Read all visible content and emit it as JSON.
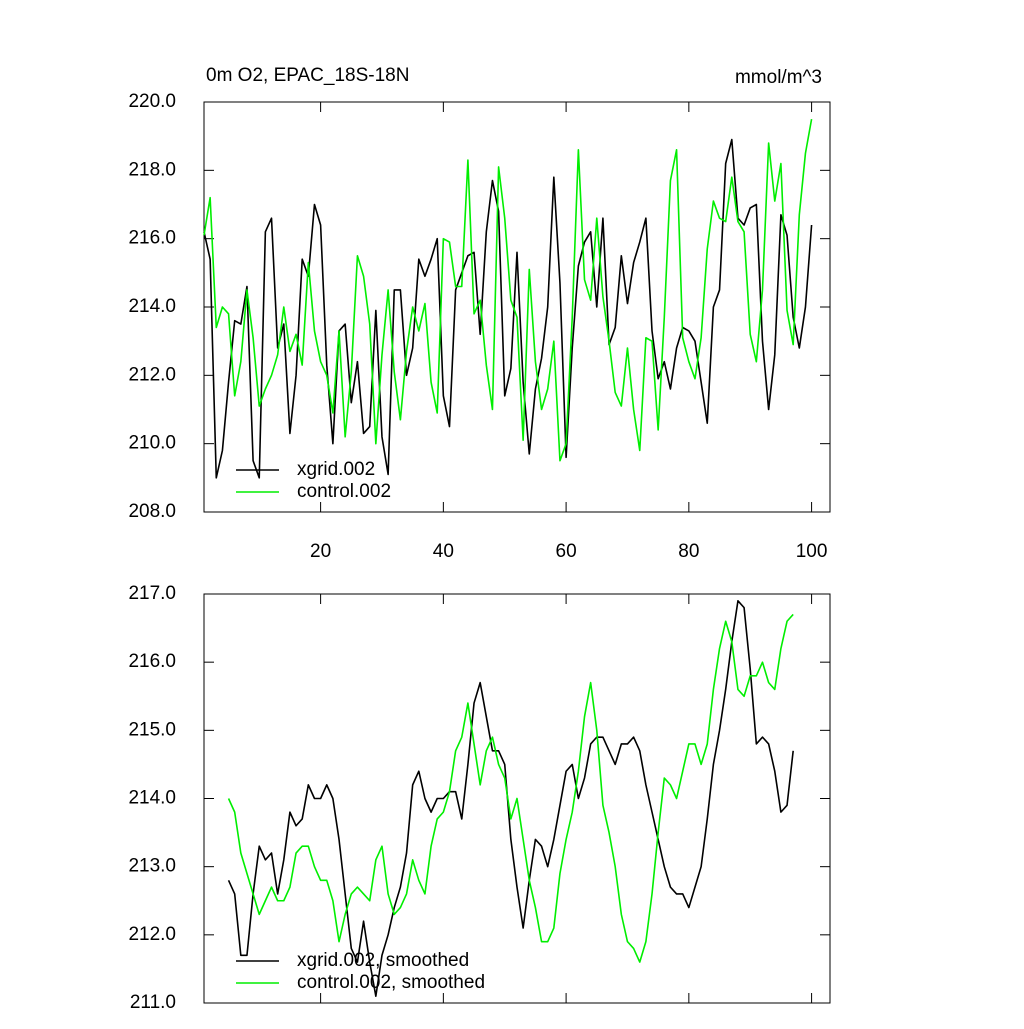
{
  "chart_data": [
    {
      "type": "line",
      "title": "0m O2, EPAC_18S-18N",
      "units": "mmol/m^3",
      "legend": "lower left",
      "x": [
        1,
        2,
        3,
        4,
        5,
        6,
        7,
        8,
        9,
        10,
        11,
        12,
        13,
        14,
        15,
        16,
        17,
        18,
        19,
        20,
        21,
        22,
        23,
        24,
        25,
        26,
        27,
        28,
        29,
        30,
        31,
        32,
        33,
        34,
        35,
        36,
        37,
        38,
        39,
        40,
        41,
        42,
        43,
        44,
        45,
        46,
        47,
        48,
        49,
        50,
        51,
        52,
        53,
        54,
        55,
        56,
        57,
        58,
        59,
        60,
        61,
        62,
        63,
        64,
        65,
        66,
        67,
        68,
        69,
        70,
        71,
        72,
        73,
        74,
        75,
        76,
        77,
        78,
        79,
        80,
        81,
        82,
        83,
        84,
        85,
        86,
        87,
        88,
        89,
        90,
        91,
        92,
        93,
        94,
        95,
        96,
        97,
        98,
        99,
        100
      ],
      "xlim": [
        1,
        103
      ],
      "xticks": [
        20,
        40,
        60,
        80,
        100
      ],
      "ylim": [
        208,
        220
      ],
      "yticks": [
        {
          "value": 208,
          "label": "208.0"
        },
        {
          "value": 210,
          "label": "210.0"
        },
        {
          "value": 212,
          "label": "212.0"
        },
        {
          "value": 214,
          "label": "214.0"
        },
        {
          "value": 216,
          "label": "216.0"
        },
        {
          "value": 218,
          "label": "218.0"
        },
        {
          "value": 220,
          "label": "220.0"
        }
      ],
      "series": [
        {
          "name": "xgrid.002",
          "color": "#000000",
          "values": [
            216.2,
            215.4,
            209.0,
            209.8,
            211.8,
            213.6,
            213.5,
            214.6,
            209.5,
            209.0,
            216.2,
            216.6,
            212.8,
            213.5,
            210.3,
            212.0,
            215.4,
            214.9,
            217.0,
            216.4,
            212.3,
            210.0,
            213.3,
            213.5,
            211.2,
            212.4,
            210.3,
            210.5,
            213.9,
            210.2,
            209.1,
            214.5,
            214.5,
            212.0,
            212.8,
            215.4,
            214.9,
            215.4,
            216.0,
            211.4,
            210.5,
            214.5,
            215.0,
            215.5,
            215.6,
            213.2,
            216.2,
            217.7,
            216.8,
            211.4,
            212.2,
            215.6,
            211.8,
            209.7,
            211.6,
            212.5,
            214.0,
            217.8,
            214.7,
            209.6,
            212.8,
            215.2,
            215.9,
            216.2,
            214.0,
            216.6,
            212.9,
            213.4,
            215.5,
            214.1,
            215.3,
            215.9,
            216.6,
            213.3,
            211.9,
            212.4,
            211.6,
            212.8,
            213.4,
            213.3,
            213.0,
            211.8,
            210.6,
            214.0,
            214.5,
            218.2,
            218.9,
            216.6,
            216.4,
            216.9,
            217.0,
            213.0,
            211.0,
            212.6,
            216.7,
            216.1,
            213.7,
            212.8,
            214.0,
            216.4
          ]
        },
        {
          "name": "control.002",
          "color": "#00ee00",
          "values": [
            216.1,
            217.2,
            213.4,
            214.0,
            213.8,
            211.4,
            212.4,
            214.5,
            213.1,
            211.1,
            211.6,
            212.0,
            212.6,
            214.0,
            212.7,
            213.2,
            212.3,
            215.3,
            213.3,
            212.4,
            212.0,
            210.9,
            213.3,
            210.2,
            212.1,
            215.5,
            214.9,
            213.5,
            210.0,
            212.6,
            214.5,
            212.1,
            210.7,
            212.7,
            214.0,
            213.3,
            214.1,
            211.8,
            210.9,
            216.0,
            215.9,
            214.6,
            214.6,
            218.3,
            213.8,
            214.2,
            212.3,
            211.0,
            218.1,
            216.6,
            214.2,
            213.7,
            210.1,
            215.1,
            212.4,
            211.0,
            211.6,
            213.0,
            209.5,
            210.0,
            213.7,
            218.6,
            214.8,
            214.2,
            216.6,
            214.3,
            213.0,
            211.5,
            211.1,
            212.8,
            211.0,
            209.8,
            213.1,
            213.0,
            210.4,
            213.7,
            217.7,
            218.6,
            213.1,
            212.4,
            211.9,
            213.1,
            215.7,
            217.1,
            216.6,
            216.5,
            217.8,
            216.5,
            216.2,
            213.2,
            212.4,
            214.5,
            218.8,
            217.1,
            218.2,
            213.9,
            212.9,
            216.7,
            218.5,
            219.5
          ]
        }
      ]
    },
    {
      "type": "line",
      "legend": "lower left",
      "x": [
        5,
        6,
        7,
        8,
        9,
        10,
        11,
        12,
        13,
        14,
        15,
        16,
        17,
        18,
        19,
        20,
        21,
        22,
        23,
        24,
        25,
        26,
        27,
        28,
        29,
        30,
        31,
        32,
        33,
        34,
        35,
        36,
        37,
        38,
        39,
        40,
        41,
        42,
        43,
        44,
        45,
        46,
        47,
        48,
        49,
        50,
        51,
        52,
        53,
        54,
        55,
        56,
        57,
        58,
        59,
        60,
        61,
        62,
        63,
        64,
        65,
        66,
        67,
        68,
        69,
        70,
        71,
        72,
        73,
        74,
        75,
        76,
        77,
        78,
        79,
        80,
        81,
        82,
        83,
        84,
        85,
        86,
        87,
        88,
        89,
        90,
        91,
        92,
        93,
        94,
        95,
        96,
        97
      ],
      "xlim": [
        1,
        103
      ],
      "xticks": [
        20,
        40,
        60,
        80,
        100
      ],
      "ylim": [
        211,
        217
      ],
      "yticks": [
        {
          "value": 211,
          "label": "211.0"
        },
        {
          "value": 212,
          "label": "212.0"
        },
        {
          "value": 213,
          "label": "213.0"
        },
        {
          "value": 214,
          "label": "214.0"
        },
        {
          "value": 215,
          "label": "215.0"
        },
        {
          "value": 216,
          "label": "216.0"
        },
        {
          "value": 217,
          "label": "217.0"
        }
      ],
      "series": [
        {
          "name": "xgrid.002, smoothed",
          "color": "#000000",
          "values": [
            212.8,
            212.6,
            211.7,
            211.7,
            212.6,
            213.3,
            213.1,
            213.2,
            212.6,
            213.1,
            213.8,
            213.6,
            213.7,
            214.2,
            214.0,
            214.0,
            214.2,
            214.0,
            213.4,
            212.6,
            211.8,
            211.6,
            212.2,
            211.6,
            211.1,
            211.7,
            212.0,
            212.4,
            212.7,
            213.2,
            214.2,
            214.4,
            214.0,
            213.8,
            214.0,
            214.0,
            214.1,
            214.1,
            213.7,
            214.5,
            215.4,
            215.7,
            215.2,
            214.7,
            214.7,
            214.5,
            213.4,
            212.7,
            212.1,
            212.8,
            213.4,
            213.3,
            213.0,
            213.4,
            213.9,
            214.4,
            214.5,
            214.0,
            214.3,
            214.8,
            214.9,
            214.9,
            214.7,
            214.5,
            214.8,
            214.8,
            214.9,
            214.7,
            214.2,
            213.8,
            213.4,
            213.0,
            212.7,
            212.6,
            212.6,
            212.4,
            212.7,
            213.0,
            213.7,
            214.5,
            215.0,
            215.6,
            216.3,
            216.9,
            216.8,
            215.9,
            214.8,
            214.9,
            214.8,
            214.4,
            213.8,
            213.9,
            214.7
          ]
        },
        {
          "name": "control.002, smoothed",
          "color": "#00ee00",
          "values": [
            214.0,
            213.8,
            213.2,
            212.9,
            212.6,
            212.3,
            212.5,
            212.7,
            212.5,
            212.5,
            212.7,
            213.2,
            213.3,
            213.3,
            213.0,
            212.8,
            212.8,
            212.5,
            211.9,
            212.3,
            212.6,
            212.7,
            212.6,
            212.5,
            213.1,
            213.3,
            212.6,
            212.3,
            212.4,
            212.6,
            213.1,
            212.8,
            212.6,
            213.3,
            213.7,
            213.8,
            214.1,
            214.7,
            214.9,
            215.4,
            214.8,
            214.2,
            214.7,
            214.9,
            214.5,
            214.3,
            213.7,
            214.0,
            213.4,
            212.8,
            212.4,
            211.9,
            211.9,
            212.1,
            212.9,
            213.4,
            213.8,
            214.4,
            215.2,
            215.7,
            215.0,
            213.9,
            213.5,
            213.0,
            212.3,
            211.9,
            211.8,
            211.6,
            211.9,
            212.6,
            213.5,
            214.3,
            214.2,
            214.0,
            214.4,
            214.8,
            214.8,
            214.5,
            214.8,
            215.6,
            216.2,
            216.6,
            216.3,
            215.6,
            215.5,
            215.8,
            215.8,
            216.0,
            215.7,
            215.6,
            216.2,
            216.6,
            216.7
          ]
        }
      ]
    }
  ]
}
